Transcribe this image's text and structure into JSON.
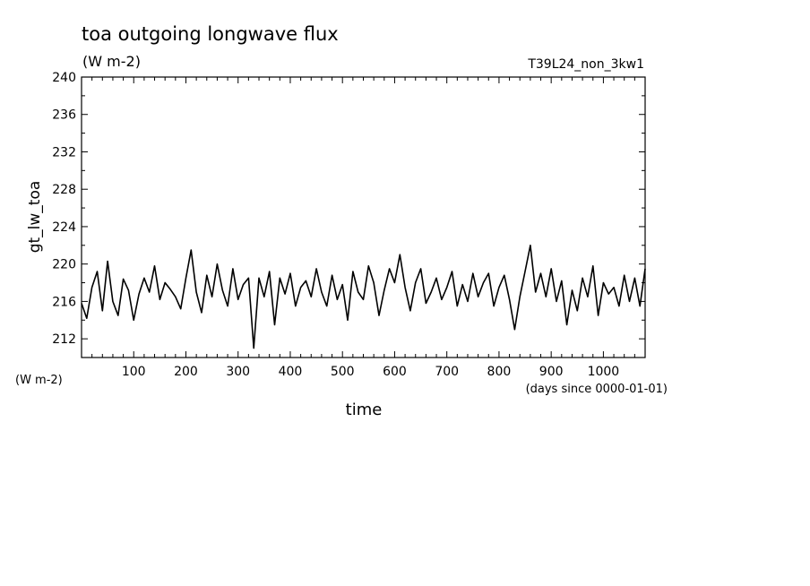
{
  "chart_data": {
    "type": "line",
    "title": "toa outgoing longwave flux",
    "subtitle": "(W m-2)",
    "run_label": "T39L24_non_3kw1",
    "xlabel": "time",
    "x_units": "(days since 0000-01-01)",
    "ylabel": "gt_lw_toa",
    "y_units": "(W m-2)",
    "xlim": [
      0,
      1080
    ],
    "ylim": [
      210,
      240
    ],
    "x_ticks": [
      100,
      200,
      300,
      400,
      500,
      600,
      700,
      800,
      900,
      1000
    ],
    "y_ticks": [
      212,
      216,
      220,
      224,
      228,
      232,
      236,
      240
    ],
    "grid": false,
    "series": [
      {
        "x": [
          0,
          10,
          20,
          30,
          40,
          50,
          60,
          70,
          80,
          90,
          100,
          110,
          120,
          130,
          140,
          150,
          160,
          170,
          180,
          190,
          200,
          210,
          220,
          230,
          240,
          250,
          260,
          270,
          280,
          290,
          300,
          310,
          320,
          330,
          340,
          350,
          360,
          370,
          380,
          390,
          400,
          410,
          420,
          430,
          440,
          450,
          460,
          470,
          480,
          490,
          500,
          510,
          520,
          530,
          540,
          550,
          560,
          570,
          580,
          590,
          600,
          610,
          620,
          630,
          640,
          650,
          660,
          670,
          680,
          690,
          700,
          710,
          720,
          730,
          740,
          750,
          760,
          770,
          780,
          790,
          800,
          810,
          820,
          830,
          840,
          850,
          860,
          870,
          880,
          890,
          900,
          910,
          920,
          930,
          940,
          950,
          960,
          970,
          980,
          990,
          1000,
          1010,
          1020,
          1030,
          1040,
          1050,
          1060,
          1070,
          1080
        ],
        "y": [
          215.8,
          214.2,
          217.5,
          219.2,
          215.0,
          220.3,
          216.0,
          214.5,
          218.4,
          217.2,
          214.0,
          216.8,
          218.5,
          217.0,
          219.8,
          216.2,
          218.0,
          217.3,
          216.5,
          215.2,
          218.5,
          221.5,
          217.0,
          214.8,
          218.8,
          216.5,
          220.0,
          217.2,
          215.5,
          219.5,
          216.2,
          217.8,
          218.5,
          211.0,
          218.5,
          216.5,
          219.2,
          213.5,
          218.5,
          216.8,
          219.0,
          215.5,
          217.5,
          218.2,
          216.5,
          219.5,
          217.0,
          215.5,
          218.8,
          216.2,
          217.8,
          214.0,
          219.2,
          217.0,
          216.2,
          219.8,
          218.0,
          214.5,
          217.2,
          219.5,
          218.0,
          221.0,
          217.5,
          215.0,
          218.0,
          219.5,
          215.8,
          217.0,
          218.5,
          216.2,
          217.5,
          219.2,
          215.5,
          217.8,
          216.0,
          219.0,
          216.5,
          218.0,
          219.0,
          215.5,
          217.5,
          218.8,
          216.2,
          213.0,
          216.5,
          219.2,
          222.0,
          217.0,
          219.0,
          216.5,
          219.5,
          216.0,
          218.2,
          213.5,
          217.2,
          215.0,
          218.5,
          216.5,
          219.8,
          214.5,
          218.0,
          216.8,
          217.5,
          215.5,
          218.8,
          216.0,
          218.5,
          215.5,
          219.5
        ]
      }
    ]
  }
}
